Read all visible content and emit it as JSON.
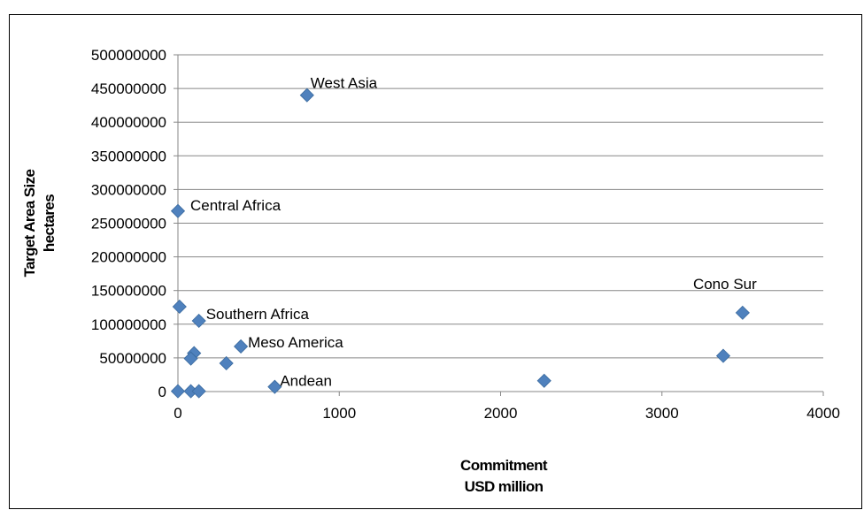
{
  "chart_data": {
    "type": "scatter",
    "title": "",
    "xlabel": [
      "Commitment",
      "USD million"
    ],
    "ylabel": [
      "Target Area Size",
      "hectares"
    ],
    "xlim": [
      0,
      4000
    ],
    "ylim": [
      0,
      500000000
    ],
    "x_ticks": [
      "0",
      "1000",
      "2000",
      "3000",
      "4000"
    ],
    "y_ticks": [
      "0",
      "50000000",
      "100000000",
      "150000000",
      "200000000",
      "250000000",
      "300000000",
      "350000000",
      "400000000",
      "450000000",
      "500000000"
    ],
    "grid": "horizontal",
    "legend": "none",
    "marker_color": "#4F81BD",
    "points": [
      {
        "x": 800,
        "y": 440000000,
        "label": "West Asia"
      },
      {
        "x": 0,
        "y": 268000000,
        "label": "Central Africa"
      },
      {
        "x": 3500,
        "y": 117000000,
        "label": "Cono Sur"
      },
      {
        "x": 130,
        "y": 105000000,
        "label": "Southern Africa"
      },
      {
        "x": 390,
        "y": 67000000,
        "label": "Meso America"
      },
      {
        "x": 600,
        "y": 7000000,
        "label": "Andean"
      },
      {
        "x": 10,
        "y": 126000000,
        "label": ""
      },
      {
        "x": 100,
        "y": 57000000,
        "label": ""
      },
      {
        "x": 80,
        "y": 49000000,
        "label": ""
      },
      {
        "x": 300,
        "y": 42000000,
        "label": ""
      },
      {
        "x": 3380,
        "y": 53000000,
        "label": ""
      },
      {
        "x": 2270,
        "y": 16000000,
        "label": ""
      },
      {
        "x": 0,
        "y": 500000,
        "label": ""
      },
      {
        "x": 80,
        "y": 500000,
        "label": ""
      },
      {
        "x": 130,
        "y": 500000,
        "label": ""
      }
    ]
  }
}
